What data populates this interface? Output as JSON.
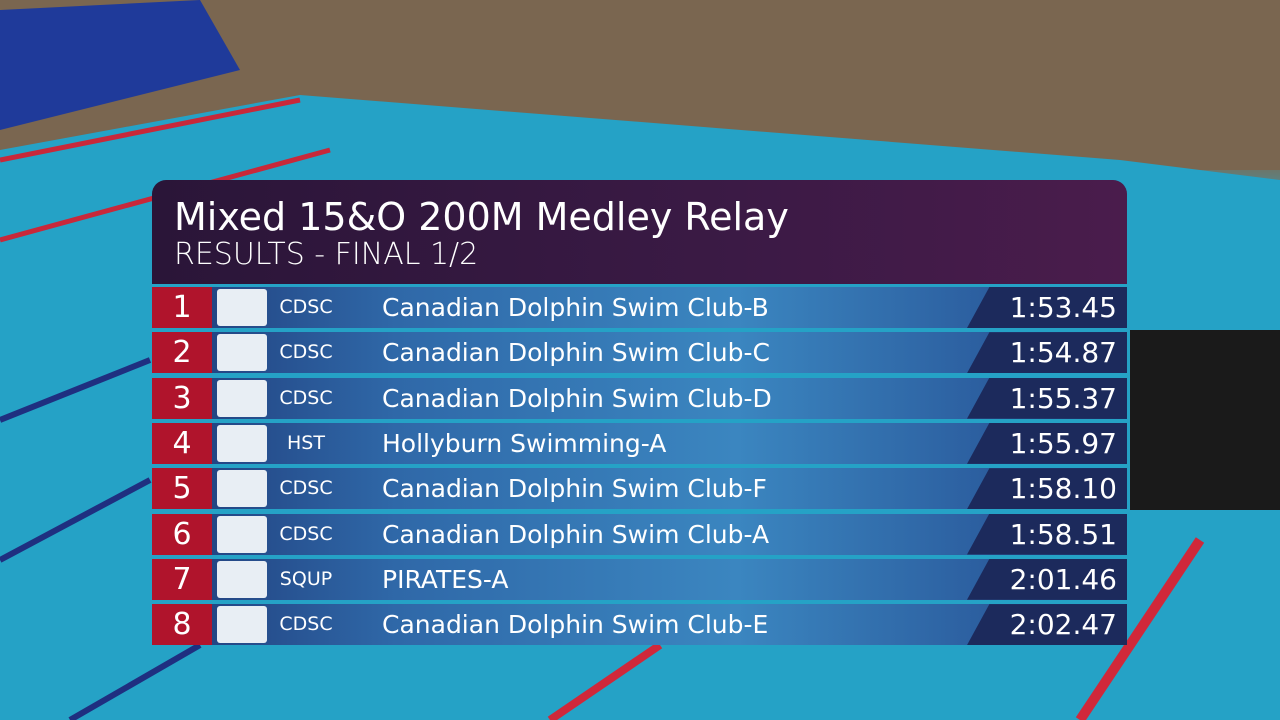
{
  "header": {
    "title": "Mixed 15&O 200M Medley Relay",
    "subtitle": "RESULTS - FINAL 1/2"
  },
  "table": {
    "rows": [
      {
        "rank": 1,
        "code": "CDSC",
        "team": "Canadian Dolphin Swim Club-B",
        "time": "1:53.45"
      },
      {
        "rank": 2,
        "code": "CDSC",
        "team": "Canadian Dolphin Swim Club-C",
        "time": "1:54.87"
      },
      {
        "rank": 3,
        "code": "CDSC",
        "team": "Canadian Dolphin Swim Club-D",
        "time": "1:55.37"
      },
      {
        "rank": 4,
        "code": "HST",
        "team": "Hollyburn Swimming-A",
        "time": "1:55.97"
      },
      {
        "rank": 5,
        "code": "CDSC",
        "team": "Canadian Dolphin Swim Club-F",
        "time": "1:58.10"
      },
      {
        "rank": 6,
        "code": "CDSC",
        "team": "Canadian Dolphin Swim Club-A",
        "time": "1:58.51"
      },
      {
        "rank": 7,
        "code": "SQUP",
        "team": "PIRATES-A",
        "time": "2:01.46"
      },
      {
        "rank": 8,
        "code": "CDSC",
        "team": "Canadian Dolphin Swim Club-E",
        "time": "2:02.47"
      }
    ]
  }
}
